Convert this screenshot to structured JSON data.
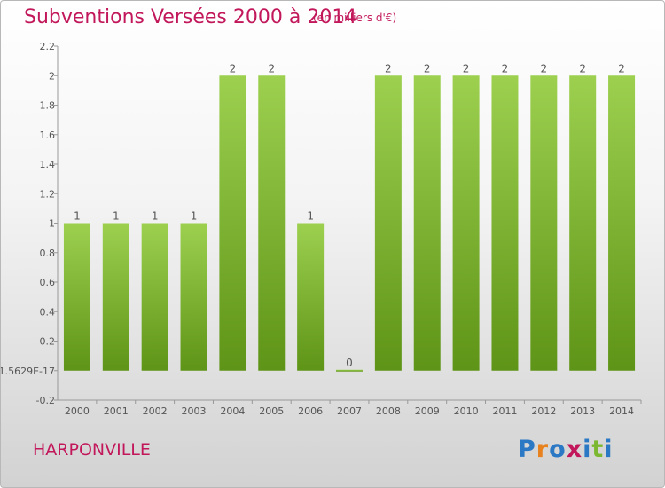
{
  "title": "Subventions Versées 2000 à 2014",
  "unit": "(en milliers d'€)",
  "commune": "HARPONVILLE",
  "logo": {
    "text": "Proxiti",
    "letter_colors": [
      "#2b78c5",
      "#e8821e",
      "#2b78c5",
      "#c2185b",
      "#2b78c5",
      "#7cb82f",
      "#2b78c5"
    ]
  },
  "chart_data": {
    "type": "bar",
    "categories": [
      "2000",
      "2001",
      "2002",
      "2003",
      "2004",
      "2005",
      "2006",
      "2007",
      "2008",
      "2009",
      "2010",
      "2011",
      "2012",
      "2013",
      "2014"
    ],
    "values": [
      1,
      1,
      1,
      1,
      2,
      2,
      1,
      0,
      2,
      2,
      2,
      2,
      2,
      2,
      2
    ],
    "data_labels": [
      "1",
      "1",
      "1",
      "1",
      "2",
      "2",
      "1",
      "0",
      "2",
      "2",
      "2",
      "2",
      "2",
      "2",
      "2"
    ],
    "y_ticks": [
      {
        "value": -0.2,
        "label": "-0.2"
      },
      {
        "value": 0,
        "label": "-1.5629E-17"
      },
      {
        "value": 0.2,
        "label": "0.2"
      },
      {
        "value": 0.4,
        "label": "0.4"
      },
      {
        "value": 0.6,
        "label": "0.6"
      },
      {
        "value": 0.8,
        "label": "0.8"
      },
      {
        "value": 1,
        "label": "1"
      },
      {
        "value": 1.2,
        "label": "1.2"
      },
      {
        "value": 1.4,
        "label": "1.4"
      },
      {
        "value": 1.6,
        "label": "1.6"
      },
      {
        "value": 1.8,
        "label": "1.8"
      },
      {
        "value": 2,
        "label": "2"
      },
      {
        "value": 2.2,
        "label": "2.2"
      }
    ],
    "ylim": [
      -0.2,
      2.2
    ],
    "grid": false,
    "colors": {
      "bar_light": "#9dd04f",
      "bar_dark": "#5e9417",
      "text": "#555555",
      "axis": "#999999"
    }
  }
}
